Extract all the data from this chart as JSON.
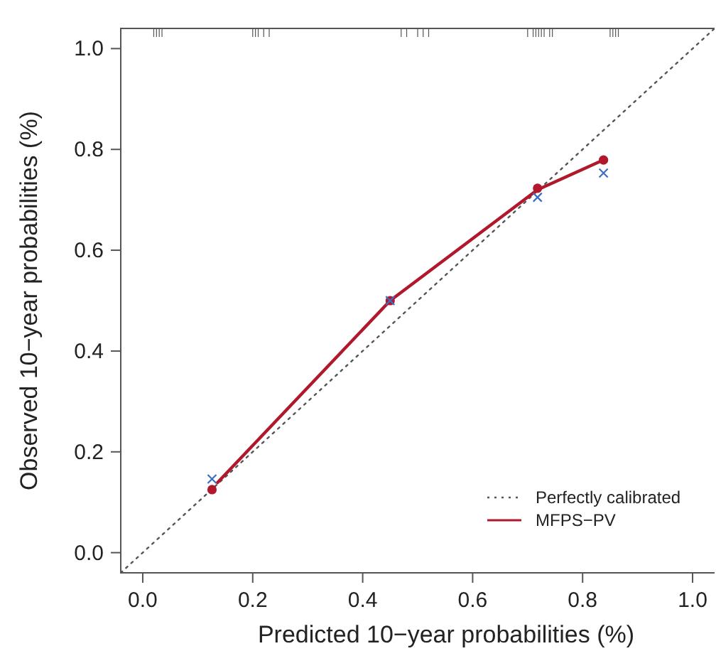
{
  "chart_data": {
    "type": "line",
    "xlabel": "Predicted 10−year probabilities (%)",
    "ylabel": "Observed 10−year probabilities (%)",
    "xlim": [
      -0.04,
      1.04
    ],
    "ylim": [
      -0.04,
      1.04
    ],
    "xticks": [
      {
        "value": 0,
        "label": "0.0"
      },
      0.2,
      0.4,
      0.6,
      0.8,
      {
        "value": 1,
        "label": "1.0"
      }
    ],
    "yticks": [
      {
        "value": 0,
        "label": "0.0"
      },
      0.2,
      0.4,
      0.6,
      0.8,
      {
        "value": 1,
        "label": "1.0"
      }
    ],
    "grid": false,
    "legend": "bottom right",
    "series": [
      {
        "name": "Perfectly calibrated",
        "color": "#555555",
        "line_style": "dotted",
        "marker": "none",
        "x": [
          -0.04,
          1.04
        ],
        "values": [
          -0.04,
          1.04
        ]
      },
      {
        "name": "MFPS−PV",
        "color": "#b2182b",
        "line_style": "solid",
        "marker": "none",
        "x": [
          0.136,
          0.45,
          0.718,
          0.838
        ],
        "values": [
          0.139,
          0.5,
          0.72,
          0.779
        ]
      },
      {
        "type": "scatter",
        "color": "#b2182b",
        "marker": "circle",
        "x": [
          0.126,
          0.45,
          0.718,
          0.838
        ],
        "values": [
          0.125,
          0.5,
          0.723,
          0.779
        ]
      },
      {
        "type": "scatter",
        "color": "#3a6fc4",
        "marker": "cross",
        "x": [
          0.126,
          0.45,
          0.718,
          0.838
        ],
        "values": [
          0.146,
          0.5,
          0.705,
          0.753
        ]
      }
    ]
  }
}
